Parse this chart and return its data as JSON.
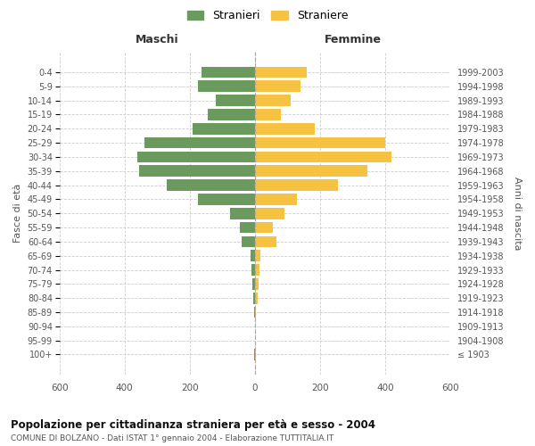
{
  "age_groups": [
    "0-4",
    "5-9",
    "10-14",
    "15-19",
    "20-24",
    "25-29",
    "30-34",
    "35-39",
    "40-44",
    "45-49",
    "50-54",
    "55-59",
    "60-64",
    "65-69",
    "70-74",
    "75-79",
    "80-84",
    "85-89",
    "90-94",
    "95-99",
    "100+"
  ],
  "birth_years": [
    "1999-2003",
    "1994-1998",
    "1989-1993",
    "1984-1988",
    "1979-1983",
    "1974-1978",
    "1969-1973",
    "1964-1968",
    "1959-1963",
    "1954-1958",
    "1949-1953",
    "1944-1948",
    "1939-1943",
    "1934-1938",
    "1929-1933",
    "1924-1928",
    "1919-1923",
    "1914-1918",
    "1909-1913",
    "1904-1908",
    "≤ 1903"
  ],
  "maschi": [
    165,
    175,
    120,
    145,
    190,
    340,
    360,
    355,
    270,
    175,
    75,
    45,
    40,
    12,
    10,
    8,
    5,
    2,
    1,
    1,
    2
  ],
  "femmine": [
    160,
    140,
    110,
    80,
    185,
    400,
    420,
    345,
    255,
    130,
    90,
    55,
    65,
    16,
    14,
    12,
    8,
    3,
    1,
    1,
    2
  ],
  "color_maschi": "#6b9a5e",
  "color_femmine": "#f5c242",
  "title": "Popolazione per cittadinanza straniera per età e sesso - 2004",
  "subtitle": "COMUNE DI BOLZANO - Dati ISTAT 1° gennaio 2004 - Elaborazione TUTTITALIA.IT",
  "header_left": "Maschi",
  "header_right": "Femmine",
  "ylabel_left": "Fasce di età",
  "ylabel_right": "Anni di nascita",
  "legend_maschi": "Stranieri",
  "legend_femmine": "Straniere",
  "xlim": 600,
  "background_color": "#ffffff",
  "grid_color": "#cccccc"
}
